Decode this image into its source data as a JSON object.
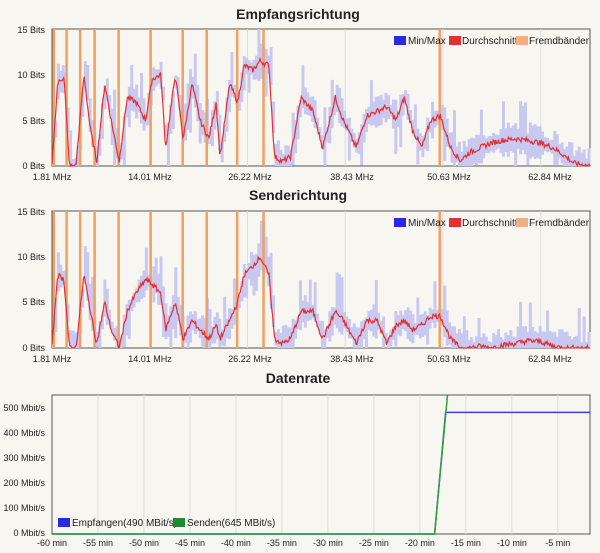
{
  "chart_data": [
    {
      "type": "area",
      "title": "Empfangsrichtung",
      "yticks": [
        "0 Bits",
        "5 Bits",
        "10 Bits",
        "15 Bits"
      ],
      "xticks": [
        "1.81 MHz",
        "14.01 MHz",
        "26.22 MHz",
        "38.43 MHz",
        "50.63 MHz",
        "62.84 MHz"
      ],
      "xlim": [
        1.81,
        69.0
      ],
      "ylim": [
        0,
        15
      ],
      "legend": [
        "Min/Max",
        "Durchschnitt",
        "Fremdbänder"
      ],
      "legend_position": "top-right",
      "colors": {
        "minmax": "#c8c8f0",
        "avg": "#e03030",
        "foreign": "#f0a060"
      },
      "foreign_bands_mhz": [
        2.0,
        3.6,
        5.3,
        7.1,
        10.1,
        14.1,
        18.1,
        21.1,
        24.9,
        28.2,
        50.2
      ],
      "average_bits": [
        [
          1.8,
          0
        ],
        [
          2.5,
          9
        ],
        [
          3.3,
          9.8
        ],
        [
          4.0,
          0
        ],
        [
          4.8,
          0
        ],
        [
          5.8,
          10
        ],
        [
          6.6,
          4
        ],
        [
          7.4,
          0.5
        ],
        [
          8.4,
          9
        ],
        [
          9.2,
          5
        ],
        [
          10.2,
          0.5
        ],
        [
          11.2,
          7.5
        ],
        [
          12.3,
          7
        ],
        [
          13.5,
          5
        ],
        [
          14.3,
          9.5
        ],
        [
          15.4,
          10
        ],
        [
          16.0,
          2
        ],
        [
          17.2,
          10
        ],
        [
          18.2,
          3
        ],
        [
          19.3,
          9
        ],
        [
          20.3,
          5
        ],
        [
          21.4,
          3
        ],
        [
          22.3,
          7
        ],
        [
          22.8,
          1
        ],
        [
          24.0,
          9
        ],
        [
          25.0,
          7
        ],
        [
          25.8,
          11
        ],
        [
          26.9,
          10.5
        ],
        [
          27.8,
          11.5
        ],
        [
          28.9,
          11
        ],
        [
          29.6,
          1
        ],
        [
          30.6,
          0.5
        ],
        [
          31.6,
          1
        ],
        [
          32.9,
          7.5
        ],
        [
          34.4,
          6
        ],
        [
          35.6,
          2
        ],
        [
          37.2,
          7.5
        ],
        [
          38.2,
          5
        ],
        [
          39.8,
          2
        ],
        [
          41.1,
          5.5
        ],
        [
          42.4,
          6
        ],
        [
          43.6,
          6.5
        ],
        [
          44.8,
          5
        ],
        [
          45.8,
          7.5
        ],
        [
          46.8,
          4
        ],
        [
          48.0,
          2
        ],
        [
          49.1,
          5
        ],
        [
          50.3,
          5.5
        ],
        [
          51.6,
          2
        ],
        [
          52.8,
          0.6
        ],
        [
          54.0,
          1.5
        ],
        [
          55.3,
          2
        ],
        [
          56.6,
          2.5
        ],
        [
          58.0,
          2.8
        ],
        [
          59.7,
          3
        ],
        [
          61.3,
          2.8
        ],
        [
          62.9,
          2.5
        ],
        [
          64.4,
          2
        ],
        [
          65.7,
          1.2
        ],
        [
          67.0,
          0.3
        ],
        [
          69.0,
          0
        ]
      ]
    },
    {
      "type": "area",
      "title": "Senderichtung",
      "yticks": [
        "0 Bits",
        "5 Bits",
        "10 Bits",
        "15 Bits"
      ],
      "xticks": [
        "1.81 MHz",
        "14.01 MHz",
        "26.22 MHz",
        "38.43 MHz",
        "50.63 MHz",
        "62.84 MHz"
      ],
      "xlim": [
        1.81,
        69.0
      ],
      "ylim": [
        0,
        15
      ],
      "legend": [
        "Min/Max",
        "Durchschnitt",
        "Fremdbänder"
      ],
      "legend_position": "top-right",
      "colors": {
        "minmax": "#c8c8f0",
        "avg": "#e03030",
        "foreign": "#f0a060"
      },
      "foreign_bands_mhz": [
        2.0,
        3.6,
        5.3,
        7.1,
        10.1,
        14.1,
        18.1,
        21.1,
        24.9,
        28.2,
        50.2
      ],
      "average_bits": [
        [
          1.8,
          0
        ],
        [
          2.5,
          8
        ],
        [
          3.3,
          7.5
        ],
        [
          4.0,
          0
        ],
        [
          4.8,
          0
        ],
        [
          5.8,
          8
        ],
        [
          6.6,
          4
        ],
        [
          7.4,
          0.5
        ],
        [
          8.4,
          5
        ],
        [
          9.2,
          2
        ],
        [
          10.2,
          0
        ],
        [
          11.2,
          4
        ],
        [
          12.3,
          6
        ],
        [
          13.5,
          7.5
        ],
        [
          14.3,
          7
        ],
        [
          15.4,
          6
        ],
        [
          16.0,
          2
        ],
        [
          17.2,
          5
        ],
        [
          18.2,
          1
        ],
        [
          19.3,
          3
        ],
        [
          20.3,
          2
        ],
        [
          21.4,
          1
        ],
        [
          22.3,
          2.5
        ],
        [
          22.8,
          1
        ],
        [
          24.0,
          3
        ],
        [
          25.0,
          5
        ],
        [
          25.8,
          8
        ],
        [
          26.9,
          9
        ],
        [
          27.8,
          10
        ],
        [
          28.9,
          8
        ],
        [
          29.6,
          1
        ],
        [
          30.6,
          0.5
        ],
        [
          31.6,
          1
        ],
        [
          32.9,
          4
        ],
        [
          34.4,
          4
        ],
        [
          35.6,
          1
        ],
        [
          37.2,
          4
        ],
        [
          38.2,
          3
        ],
        [
          39.8,
          0.5
        ],
        [
          41.1,
          3
        ],
        [
          42.4,
          3
        ],
        [
          43.6,
          0.5
        ],
        [
          44.8,
          2.5
        ],
        [
          45.8,
          3
        ],
        [
          46.8,
          2
        ],
        [
          48.0,
          2.5
        ],
        [
          49.1,
          3.5
        ],
        [
          50.3,
          3.5
        ],
        [
          51.6,
          1
        ],
        [
          52.8,
          0
        ],
        [
          54.0,
          0
        ],
        [
          55.3,
          0.2
        ],
        [
          56.6,
          0
        ],
        [
          58.0,
          0.3
        ],
        [
          59.7,
          0.5
        ],
        [
          61.3,
          0.8
        ],
        [
          62.9,
          0.7
        ],
        [
          64.4,
          0.2
        ],
        [
          65.7,
          0
        ],
        [
          67.0,
          0
        ],
        [
          69.0,
          0
        ]
      ]
    },
    {
      "type": "line",
      "title": "Datenrate",
      "yticks": [
        "0 Mbit/s",
        "100 Mbit/s",
        "200 Mbit/s",
        "300 Mbit/s",
        "400 Mbit/s",
        "500 Mbit/s"
      ],
      "xticks": [
        "-60 min",
        "-55 min",
        "-50 min",
        "-45 min",
        "-40 min",
        "-35 min",
        "-30 min",
        "-25 min",
        "-20 min",
        "-15 min",
        "-10 min",
        "-5 min"
      ],
      "xlim": [
        -60,
        -1.5
      ],
      "ylim": [
        0,
        560
      ],
      "grid": true,
      "legend_position": "bottom-left",
      "series": [
        {
          "name": "Empfangen(490 MBit/s)",
          "color": "#4040d0",
          "x": [
            -60,
            -18.4,
            -17.2,
            -16.8,
            -1.5
          ],
          "y": [
            0,
            0,
            490,
            490,
            490
          ]
        },
        {
          "name": "Senden(645 MBit/s)",
          "color": "#30a040",
          "x": [
            -60,
            -18.4,
            -17.0
          ],
          "y": [
            0,
            0,
            645
          ]
        }
      ]
    }
  ]
}
